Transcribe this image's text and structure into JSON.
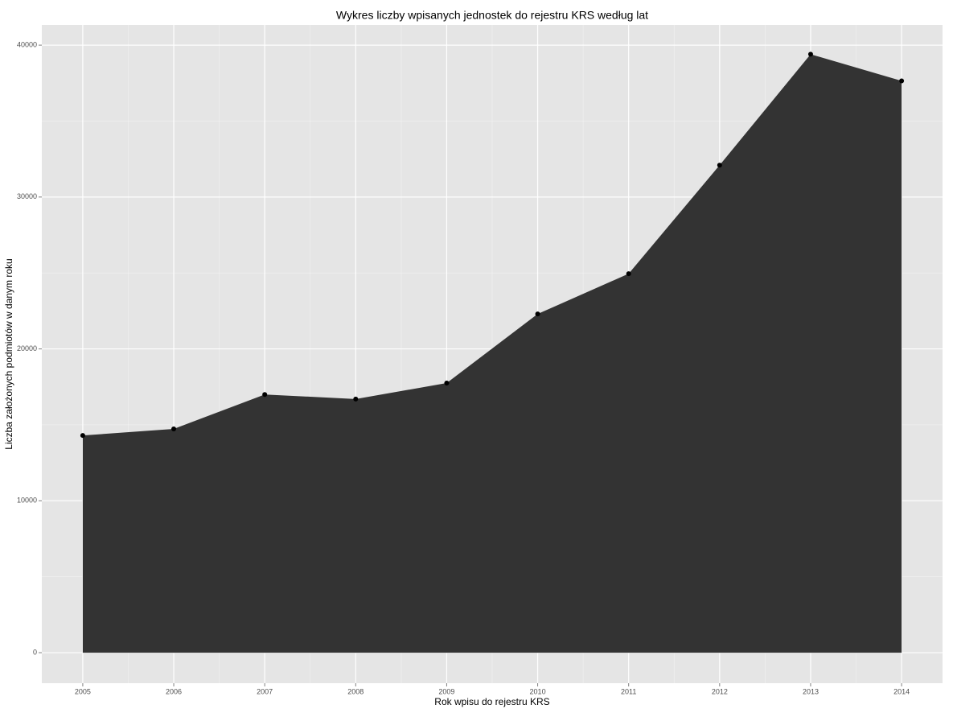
{
  "chart_data": {
    "type": "area",
    "title": "Wykres liczby wpisanych jednostek do rejestru KRS według lat",
    "x_label": "Rok wpisu do rejestru KRS",
    "y_label": "Liczba założonych podmiotów w danym roku",
    "x": [
      2005,
      2006,
      2007,
      2008,
      2009,
      2010,
      2011,
      2012,
      2013,
      2014
    ],
    "values": [
      14300,
      14730,
      17000,
      16700,
      17750,
      22300,
      24950,
      32100,
      39400,
      37650
    ],
    "color": "#333333",
    "point_color": "#000000",
    "xlim": [
      2004.55,
      2014.45
    ],
    "ylim": [
      -2010,
      41330
    ],
    "xticks": [
      2005,
      2006,
      2007,
      2008,
      2009,
      2010,
      2011,
      2012,
      2013,
      2014
    ],
    "yticks": [
      0,
      10000,
      20000,
      30000,
      40000
    ],
    "minor_xticks": [
      2005.5,
      2006.5,
      2007.5,
      2008.5,
      2009.5,
      2010.5,
      2011.5,
      2012.5,
      2013.5
    ],
    "minor_yticks": [
      5000,
      15000,
      25000,
      35000
    ],
    "grid": true
  }
}
